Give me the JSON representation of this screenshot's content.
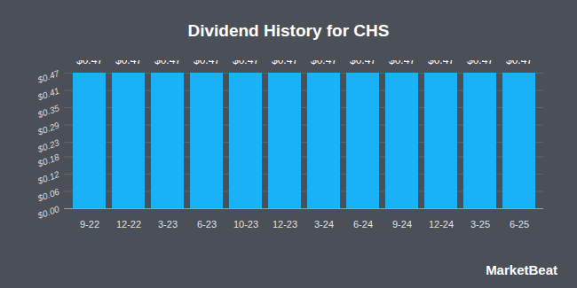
{
  "chart_data": {
    "type": "bar",
    "title": "Dividend History for CHS",
    "caption": "MarketBeat",
    "categories": [
      "9-22",
      "12-22",
      "3-23",
      "6-23",
      "10-23",
      "12-23",
      "3-24",
      "6-24",
      "9-24",
      "12-24",
      "3-25",
      "6-25"
    ],
    "values": [
      0.47,
      0.47,
      0.47,
      0.47,
      0.47,
      0.47,
      0.47,
      0.47,
      0.47,
      0.47,
      0.47,
      0.47
    ],
    "value_labels": [
      "$0.47",
      "$0.47",
      "$0.47",
      "$0.47",
      "$0.47",
      "$0.47",
      "$0.47",
      "$0.47",
      "$0.47",
      "$0.47",
      "$0.47",
      "$0.47"
    ],
    "data_labels": true,
    "color": "#1ab2f6",
    "ylim": [
      0,
      0.47
    ],
    "yticks": [
      {
        "value": 0,
        "label": "$0.00"
      },
      {
        "value": 0.06,
        "label": "$0.06"
      },
      {
        "value": 0.12,
        "label": "$0.12"
      },
      {
        "value": 0.18,
        "label": "$0.18"
      },
      {
        "value": 0.23,
        "label": "$0.23"
      },
      {
        "value": 0.29,
        "label": "$0.29"
      },
      {
        "value": 0.35,
        "label": "$0.35"
      },
      {
        "value": 0.41,
        "label": "$0.41"
      },
      {
        "value": 0.47,
        "label": "$0.47"
      }
    ],
    "grid": true
  }
}
